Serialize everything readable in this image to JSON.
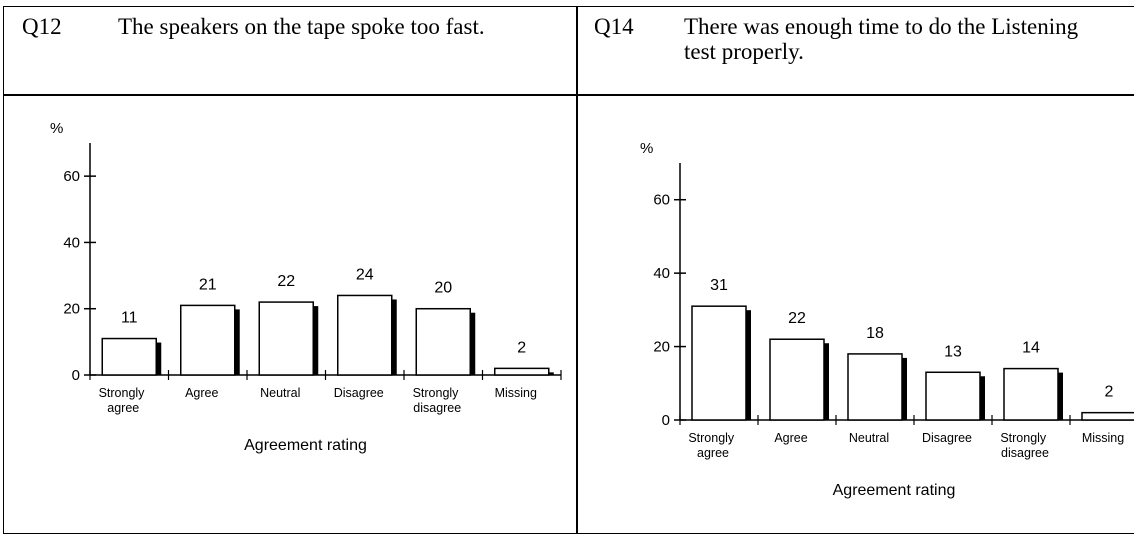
{
  "chart_data": [
    {
      "type": "bar",
      "question": "Q12",
      "title": "The speakers on the tape spoke too fast.",
      "ylabel": "%",
      "xlabel": "Agreement rating",
      "categories": [
        "Strongly agree",
        "Agree",
        "Neutral",
        "Disagree",
        "Strongly disagree",
        "Missing"
      ],
      "values": [
        11,
        21,
        22,
        24,
        20,
        2
      ],
      "color": "#ffffff",
      "ylim": [
        0,
        70
      ],
      "yticks": [
        0,
        20,
        40,
        60
      ]
    },
    {
      "type": "bar",
      "question": "Q14",
      "title": "There was enough time to do the Listening test properly.",
      "ylabel": "%",
      "xlabel": "Agreement rating",
      "categories": [
        "Strongly agree",
        "Agree",
        "Neutral",
        "Disagree",
        "Strongly disagree",
        "Missing"
      ],
      "values": [
        31,
        22,
        18,
        13,
        14,
        2
      ],
      "color": "#ffffff",
      "ylim": [
        0,
        70
      ],
      "yticks": [
        0,
        20,
        40,
        60
      ]
    }
  ]
}
